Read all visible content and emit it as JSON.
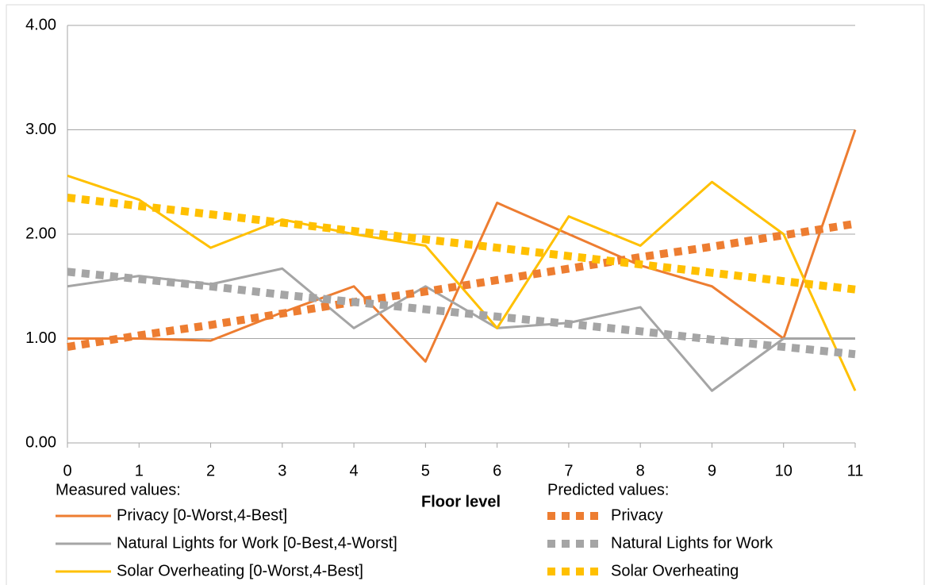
{
  "chart_data": {
    "type": "line",
    "x_label": "Floor level",
    "x": [
      0,
      1,
      2,
      3,
      4,
      5,
      6,
      7,
      8,
      9,
      10,
      11
    ],
    "xlim": [
      0,
      11
    ],
    "xticks": [
      0,
      1,
      2,
      3,
      4,
      5,
      6,
      7,
      8,
      9,
      10,
      11
    ],
    "ylim": [
      0,
      4
    ],
    "yticks": [
      {
        "value": 0,
        "label": "0.00"
      },
      {
        "value": 1,
        "label": "1.00"
      },
      {
        "value": 2,
        "label": "2.00"
      },
      {
        "value": 3,
        "label": "3.00"
      },
      {
        "value": 4,
        "label": "4.00"
      }
    ],
    "grid": true,
    "series_groups": [
      {
        "label": "Measured values:",
        "style": "solid",
        "series": [
          {
            "name": "Privacy [0-Worst,4-Best]",
            "color": "#ED7D31",
            "values": [
              1.0,
              1.0,
              0.98,
              1.25,
              1.5,
              0.78,
              2.3,
              2.0,
              1.7,
              1.5,
              1.0,
              3.0
            ]
          },
          {
            "name": "Natural Lights for Work [0-Best,4-Worst]",
            "color": "#A5A5A5",
            "values": [
              1.5,
              1.6,
              1.52,
              1.67,
              1.1,
              1.5,
              1.1,
              1.15,
              1.3,
              0.5,
              1.0,
              1.0
            ]
          },
          {
            "name": "Solar Overheating [0-Worst,4-Best]",
            "color": "#FFC000",
            "values": [
              2.56,
              2.33,
              1.87,
              2.14,
              2.0,
              1.89,
              1.1,
              2.17,
              1.89,
              2.5,
              2.0,
              0.5
            ]
          }
        ]
      },
      {
        "label": "Predicted values:",
        "style": "dotted",
        "series": [
          {
            "name": "Privacy",
            "color": "#ED7D31",
            "values": [
              0.92,
              1.03,
              1.13,
              1.24,
              1.35,
              1.45,
              1.56,
              1.67,
              1.78,
              1.88,
              1.99,
              2.1
            ]
          },
          {
            "name": "Natural Lights for Work",
            "color": "#A5A5A5",
            "values": [
              1.64,
              1.57,
              1.5,
              1.42,
              1.35,
              1.28,
              1.21,
              1.14,
              1.07,
              0.99,
              0.92,
              0.85
            ]
          },
          {
            "name": "Solar Overheating",
            "color": "#FFC000",
            "values": [
              2.35,
              2.27,
              2.19,
              2.11,
              2.03,
              1.95,
              1.87,
              1.79,
              1.71,
              1.63,
              1.55,
              1.47
            ]
          }
        ]
      }
    ]
  }
}
